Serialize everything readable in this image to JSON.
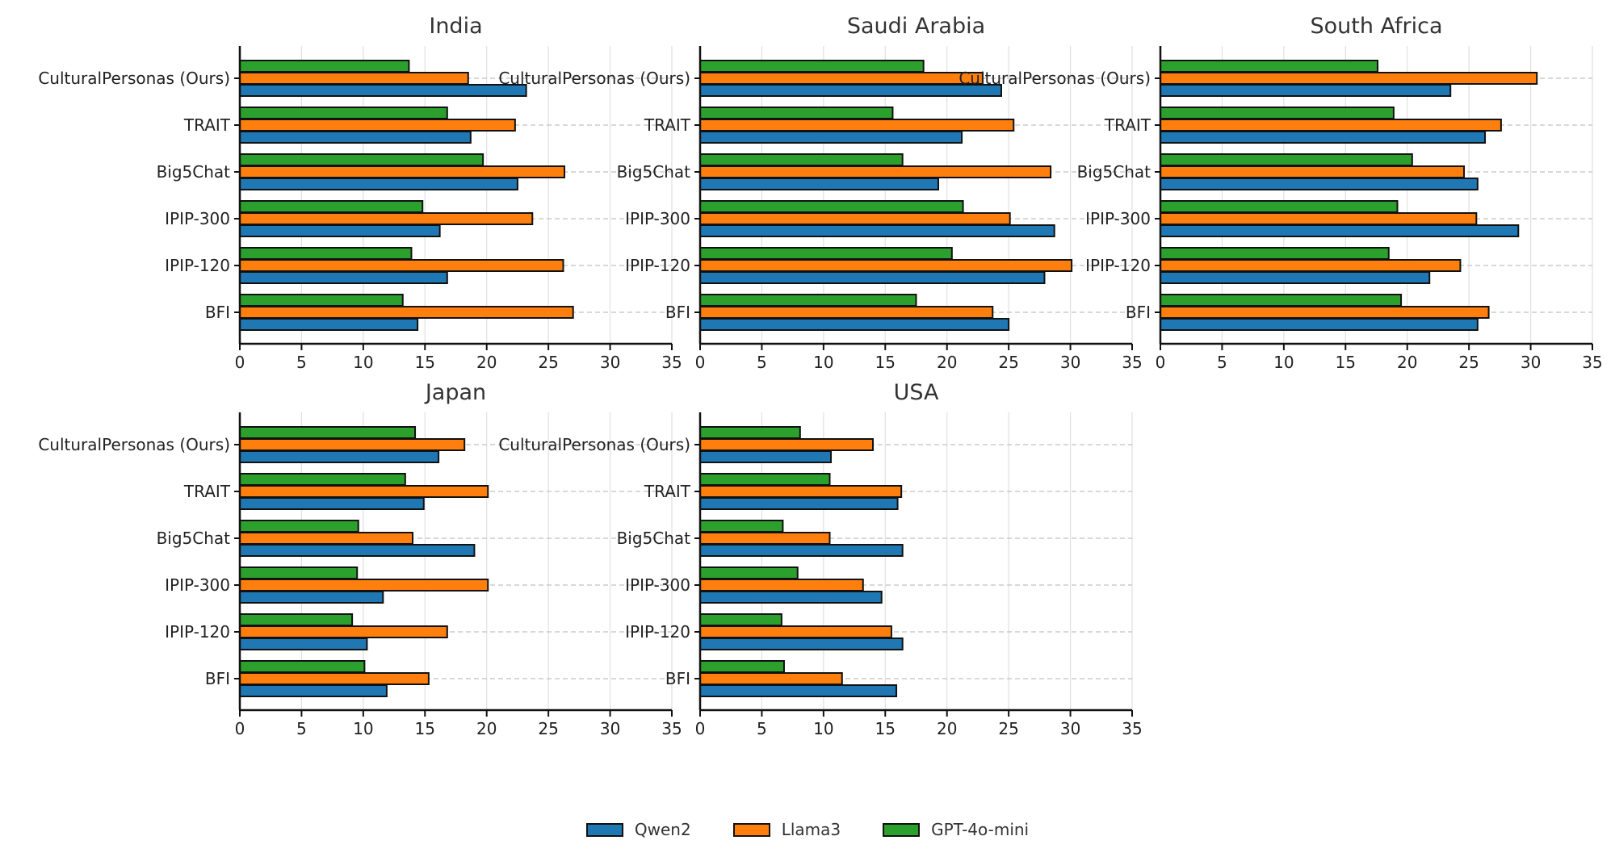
{
  "colors": {
    "Qwen2": "#1f77b4",
    "Llama3": "#ff7f0e",
    "GPT-4o-mini": "#2ca02c"
  },
  "legend": {
    "items": [
      "Qwen2",
      "Llama3",
      "GPT-4o-mini"
    ]
  },
  "chart_data": [
    {
      "type": "bar",
      "orientation": "horizontal",
      "title": "India",
      "categories": [
        "CulturalPersonas (Ours)",
        "TRAIT",
        "Big5Chat",
        "IPIP-300",
        "IPIP-120",
        "BFI"
      ],
      "xlim": [
        0,
        35
      ],
      "xticks": [
        0,
        5,
        10,
        15,
        20,
        25,
        30,
        35
      ],
      "series": [
        {
          "name": "Qwen2",
          "values": [
            23.2,
            18.7,
            22.5,
            16.2,
            16.8,
            14.4
          ]
        },
        {
          "name": "Llama3",
          "values": [
            18.5,
            22.3,
            26.3,
            23.7,
            26.2,
            27.0
          ]
        },
        {
          "name": "GPT-4o-mini",
          "values": [
            13.7,
            16.8,
            19.7,
            14.8,
            13.9,
            13.2
          ]
        }
      ]
    },
    {
      "type": "bar",
      "orientation": "horizontal",
      "title": "Saudi Arabia",
      "categories": [
        "CulturalPersonas (Ours)",
        "TRAIT",
        "Big5Chat",
        "IPIP-300",
        "IPIP-120",
        "BFI"
      ],
      "xlim": [
        0,
        35
      ],
      "xticks": [
        0,
        5,
        10,
        15,
        20,
        25,
        30,
        35
      ],
      "series": [
        {
          "name": "Qwen2",
          "values": [
            24.4,
            21.2,
            19.3,
            28.7,
            27.9,
            25.0
          ]
        },
        {
          "name": "Llama3",
          "values": [
            22.9,
            25.4,
            28.4,
            25.1,
            30.1,
            23.7
          ]
        },
        {
          "name": "GPT-4o-mini",
          "values": [
            18.1,
            15.6,
            16.4,
            21.3,
            20.4,
            17.5
          ]
        }
      ]
    },
    {
      "type": "bar",
      "orientation": "horizontal",
      "title": "South Africa",
      "categories": [
        "CulturalPersonas (Ours)",
        "TRAIT",
        "Big5Chat",
        "IPIP-300",
        "IPIP-120",
        "BFI"
      ],
      "xlim": [
        0,
        35
      ],
      "xticks": [
        0,
        5,
        10,
        15,
        20,
        25,
        30,
        35
      ],
      "series": [
        {
          "name": "Qwen2",
          "values": [
            23.5,
            26.3,
            25.7,
            29.0,
            21.8,
            25.7
          ]
        },
        {
          "name": "Llama3",
          "values": [
            30.5,
            27.6,
            24.6,
            25.6,
            24.3,
            26.6
          ]
        },
        {
          "name": "GPT-4o-mini",
          "values": [
            17.6,
            18.9,
            20.4,
            19.2,
            18.5,
            19.5
          ]
        }
      ]
    },
    {
      "type": "bar",
      "orientation": "horizontal",
      "title": "Japan",
      "categories": [
        "CulturalPersonas (Ours)",
        "TRAIT",
        "Big5Chat",
        "IPIP-300",
        "IPIP-120",
        "BFI"
      ],
      "xlim": [
        0,
        35
      ],
      "xticks": [
        0,
        5,
        10,
        15,
        20,
        25,
        30,
        35
      ],
      "series": [
        {
          "name": "Qwen2",
          "values": [
            16.1,
            14.9,
            19.0,
            11.6,
            10.3,
            11.9
          ]
        },
        {
          "name": "Llama3",
          "values": [
            18.2,
            20.1,
            14.0,
            20.1,
            16.8,
            15.3
          ]
        },
        {
          "name": "GPT-4o-mini",
          "values": [
            14.2,
            13.4,
            9.6,
            9.5,
            9.1,
            10.1
          ]
        }
      ]
    },
    {
      "type": "bar",
      "orientation": "horizontal",
      "title": "USA",
      "categories": [
        "CulturalPersonas (Ours)",
        "TRAIT",
        "Big5Chat",
        "IPIP-300",
        "IPIP-120",
        "BFI"
      ],
      "xlim": [
        0,
        35
      ],
      "xticks": [
        0,
        5,
        10,
        15,
        20,
        25,
        30,
        35
      ],
      "series": [
        {
          "name": "Qwen2",
          "values": [
            10.6,
            16.0,
            16.4,
            14.7,
            16.4,
            15.9
          ]
        },
        {
          "name": "Llama3",
          "values": [
            14.0,
            16.3,
            10.5,
            13.2,
            15.5,
            11.5
          ]
        },
        {
          "name": "GPT-4o-mini",
          "values": [
            8.1,
            10.5,
            6.7,
            7.9,
            6.6,
            6.8
          ]
        }
      ]
    }
  ]
}
